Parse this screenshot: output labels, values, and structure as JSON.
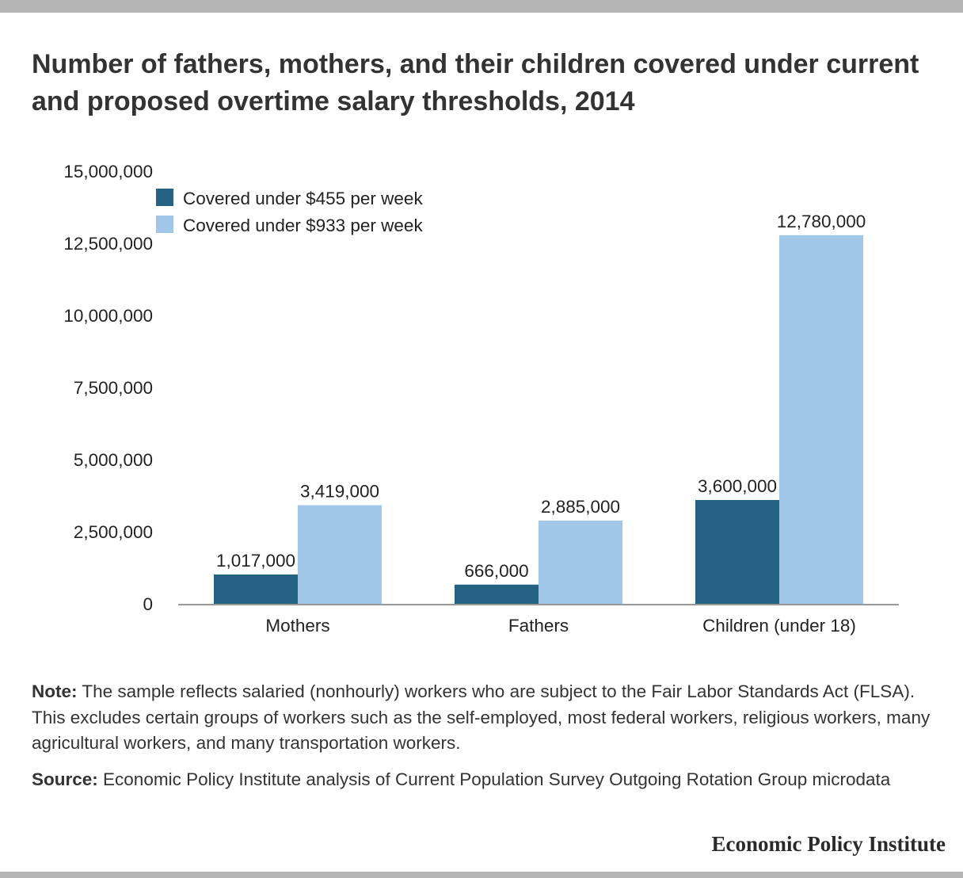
{
  "title": "Number of fathers, mothers, and their children covered under current and proposed overtime salary thresholds, 2014",
  "note": {
    "label": "Note:",
    "text": " The sample reflects salaried (nonhourly) workers who are subject to the Fair Labor Standards Act (FLSA). This excludes certain groups of workers such as the self-employed, most federal workers, religious workers, many agricultural workers, and many transportation workers."
  },
  "source": {
    "label": "Source:",
    "text": " Economic Policy Institute analysis of Current Population Survey Outgoing Rotation Group microdata"
  },
  "footer": "Economic Policy Institute",
  "colors": {
    "series1": "#256283",
    "series2": "#a0c6e8",
    "axis": "#999999"
  },
  "chart_data": {
    "type": "bar",
    "title": "Number of fathers, mothers, and their children covered under current and proposed overtime salary thresholds, 2014",
    "xlabel": "",
    "ylabel": "",
    "categories": [
      "Mothers",
      "Fathers",
      "Children (under 18)"
    ],
    "series": [
      {
        "name": "Covered under $455 per week",
        "values": [
          1017000,
          666000,
          3600000
        ],
        "labels": [
          "1,017,000",
          "666,000",
          "3,600,000"
        ]
      },
      {
        "name": "Covered under $933 per week",
        "values": [
          3419000,
          2885000,
          12780000
        ],
        "labels": [
          "3,419,000",
          "2,885,000",
          "12,780,000"
        ]
      }
    ],
    "ylim": [
      0,
      15000000
    ],
    "yticks": [
      0,
      2500000,
      5000000,
      7500000,
      10000000,
      12500000,
      15000000
    ],
    "ytick_labels": [
      "0",
      "2,500,000",
      "5,000,000",
      "7,500,000",
      "10,000,000",
      "12,500,000",
      "15,000,000"
    ],
    "grid": false,
    "legend": "top-left"
  }
}
